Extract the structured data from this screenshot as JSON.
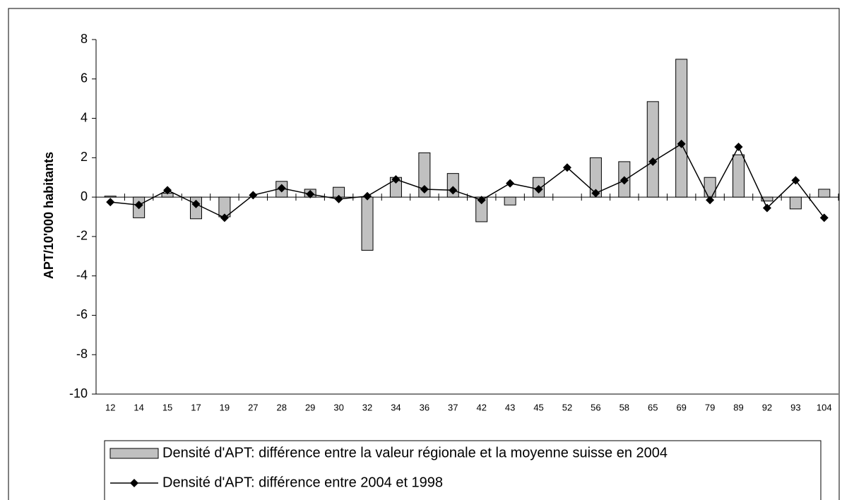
{
  "chart_data": {
    "type": "bar-line",
    "y_label": "APT/10'000 habitants",
    "categories": [
      "12",
      "14",
      "15",
      "17",
      "19",
      "27",
      "28",
      "29",
      "30",
      "32",
      "34",
      "36",
      "37",
      "42",
      "43",
      "45",
      "52",
      "56",
      "58",
      "65",
      "69",
      "79",
      "89",
      "92",
      "93",
      "104"
    ],
    "series": [
      {
        "name": "Densité d'APT: différence entre la valeur régionale et la moyenne suisse en 2004",
        "type": "bar",
        "color": "#c0c0c0",
        "values": [
          0.05,
          -1.05,
          0.2,
          -1.1,
          -1.0,
          0,
          0.8,
          0.4,
          0.5,
          -2.7,
          1.0,
          2.25,
          1.2,
          -1.25,
          -0.4,
          1.0,
          0,
          2.0,
          1.8,
          4.85,
          7.0,
          1.0,
          2.15,
          -0.2,
          -0.6,
          0.4
        ]
      },
      {
        "name": "Densité d'APT: différence entre 2004 et 1998",
        "type": "line",
        "color": "#000000",
        "values": [
          -0.25,
          -0.4,
          0.35,
          -0.35,
          -1.05,
          0.1,
          0.45,
          0.15,
          -0.1,
          0.05,
          0.9,
          0.4,
          0.35,
          -0.15,
          0.7,
          0.4,
          1.5,
          0.2,
          0.85,
          1.8,
          2.7,
          -0.15,
          2.55,
          -0.55,
          0.85,
          -1.05
        ]
      }
    ],
    "ylim": [
      -10,
      8
    ],
    "yticks": [
      -10,
      -8,
      -6,
      -4,
      -2,
      0,
      2,
      4,
      6,
      8
    ],
    "grid": false
  }
}
